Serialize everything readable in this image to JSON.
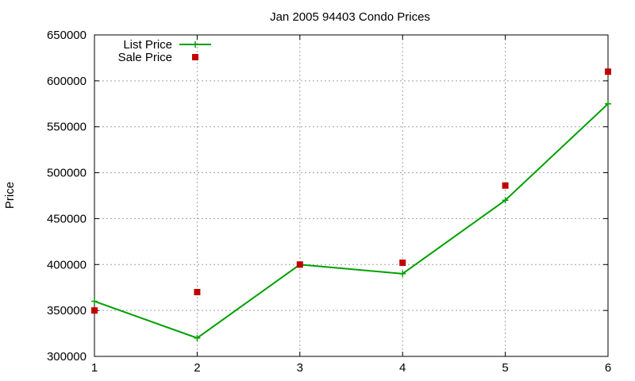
{
  "chart_data": {
    "type": "line",
    "title": "Jan 2005 94403 Condo Prices",
    "xlabel": "",
    "ylabel": "Price",
    "x": [
      1,
      2,
      3,
      4,
      5,
      6
    ],
    "xlim": [
      1,
      6
    ],
    "ylim": [
      300000,
      650000
    ],
    "xticks": [
      "1",
      "2",
      "3",
      "4",
      "5",
      "6"
    ],
    "yticks": [
      "300000",
      "350000",
      "400000",
      "450000",
      "500000",
      "550000",
      "600000",
      "650000"
    ],
    "grid": true,
    "legend_position": "top-left",
    "series": [
      {
        "name": "List Price",
        "style": "line with cross markers",
        "color": "#00a000",
        "values": [
          360000,
          320000,
          400000,
          390000,
          470000,
          575000
        ]
      },
      {
        "name": "Sale Price",
        "style": "square markers",
        "color": "#c00000",
        "values": [
          350000,
          370000,
          400000,
          402000,
          486000,
          610000
        ]
      }
    ]
  }
}
